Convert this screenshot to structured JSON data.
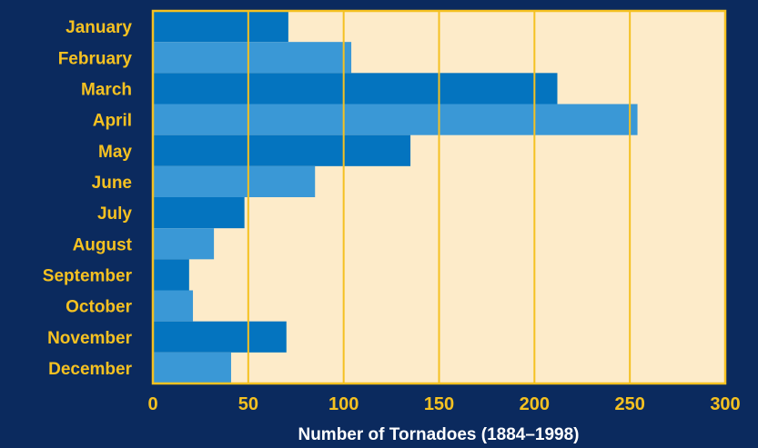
{
  "chart_data": {
    "type": "bar",
    "orientation": "horizontal",
    "categories": [
      "January",
      "February",
      "March",
      "April",
      "May",
      "June",
      "July",
      "August",
      "September",
      "October",
      "November",
      "December"
    ],
    "values": [
      71,
      104,
      212,
      254,
      135,
      85,
      48,
      32,
      19,
      21,
      70,
      41
    ],
    "xlabel": "Number of Tornadoes (1884–1998)",
    "ylabel": "",
    "xlim": [
      0,
      300
    ],
    "xticks": [
      "0",
      "50",
      "100",
      "150",
      "200",
      "250",
      "300"
    ],
    "grid": true,
    "colors": {
      "background": "#0b2a5e",
      "plot_area": "#fdebc9",
      "bar_dark": "#0474bf",
      "bar_light": "#3a98d6",
      "accent": "#f5c121"
    }
  }
}
